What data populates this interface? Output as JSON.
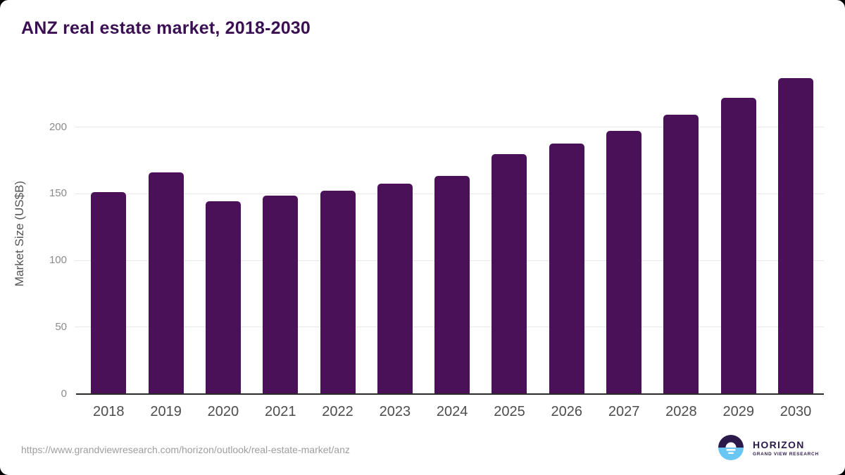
{
  "page": {
    "title": "ANZ real estate market, 2018-2030",
    "source_url": "https://www.grandviewresearch.com/horizon/outlook/real-estate-market/anz"
  },
  "logo": {
    "name": "HORIZON",
    "subtitle": "GRAND VIEW RESEARCH"
  },
  "colors": {
    "bar": "#4a1158",
    "title_text": "#3a1053",
    "axis_line": "#2b2b2b",
    "gridline": "#e8e8e8",
    "y_tick_text": "#8a8a8a",
    "x_tick_text": "#4d4d4d",
    "url_text": "#9e9e9e",
    "logo_purple": "#2b1a4a",
    "logo_blue": "#6ac6f3",
    "background": "#ffffff"
  },
  "chart_data": {
    "type": "bar",
    "title": "ANZ real estate market, 2018-2030",
    "categories": [
      "2018",
      "2019",
      "2020",
      "2021",
      "2022",
      "2023",
      "2024",
      "2025",
      "2026",
      "2027",
      "2028",
      "2029",
      "2030"
    ],
    "values": [
      150.7,
      165.6,
      144.2,
      148.1,
      151.8,
      157.1,
      163.0,
      179.4,
      187.4,
      197.0,
      208.8,
      221.5,
      236.6
    ],
    "xlabel": "",
    "ylabel": "Market Size (US$B)",
    "ylim": [
      0,
      250
    ],
    "yticks": [
      0,
      50,
      100,
      150,
      200
    ],
    "grid": "horizontal",
    "legend": "none",
    "bar_color": "#4a1158"
  }
}
